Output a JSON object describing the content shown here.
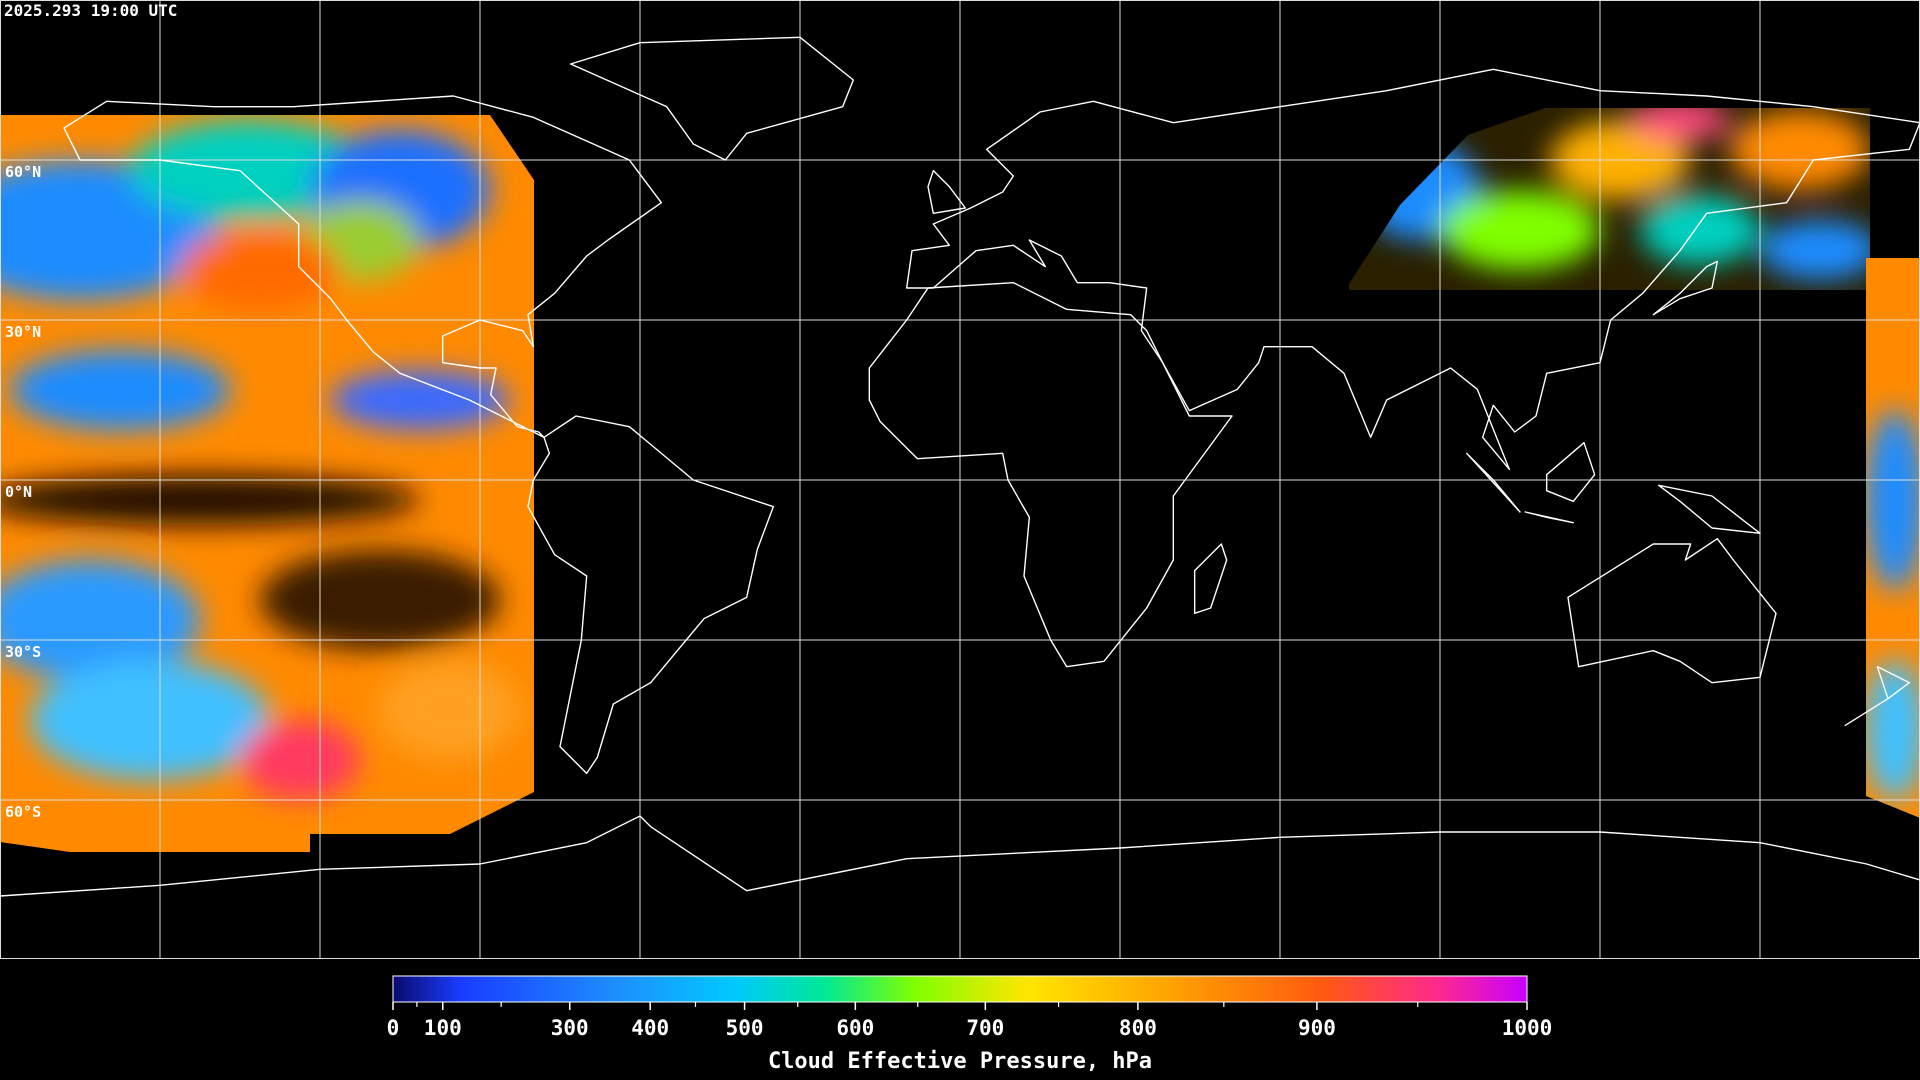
{
  "timestamp": "2025.293 19:00 UTC",
  "latitude_labels": [
    "60°N",
    "30°N",
    "0°N",
    "30°S",
    "60°S"
  ],
  "colorbar": {
    "label": "Cloud Effective Pressure, hPa",
    "range": [
      0,
      1000
    ],
    "ticks": [
      0,
      100,
      300,
      400,
      500,
      600,
      700,
      800,
      900,
      1000
    ],
    "minor_ticks": [
      50,
      200,
      450,
      550,
      650,
      750,
      850,
      950
    ]
  }
}
